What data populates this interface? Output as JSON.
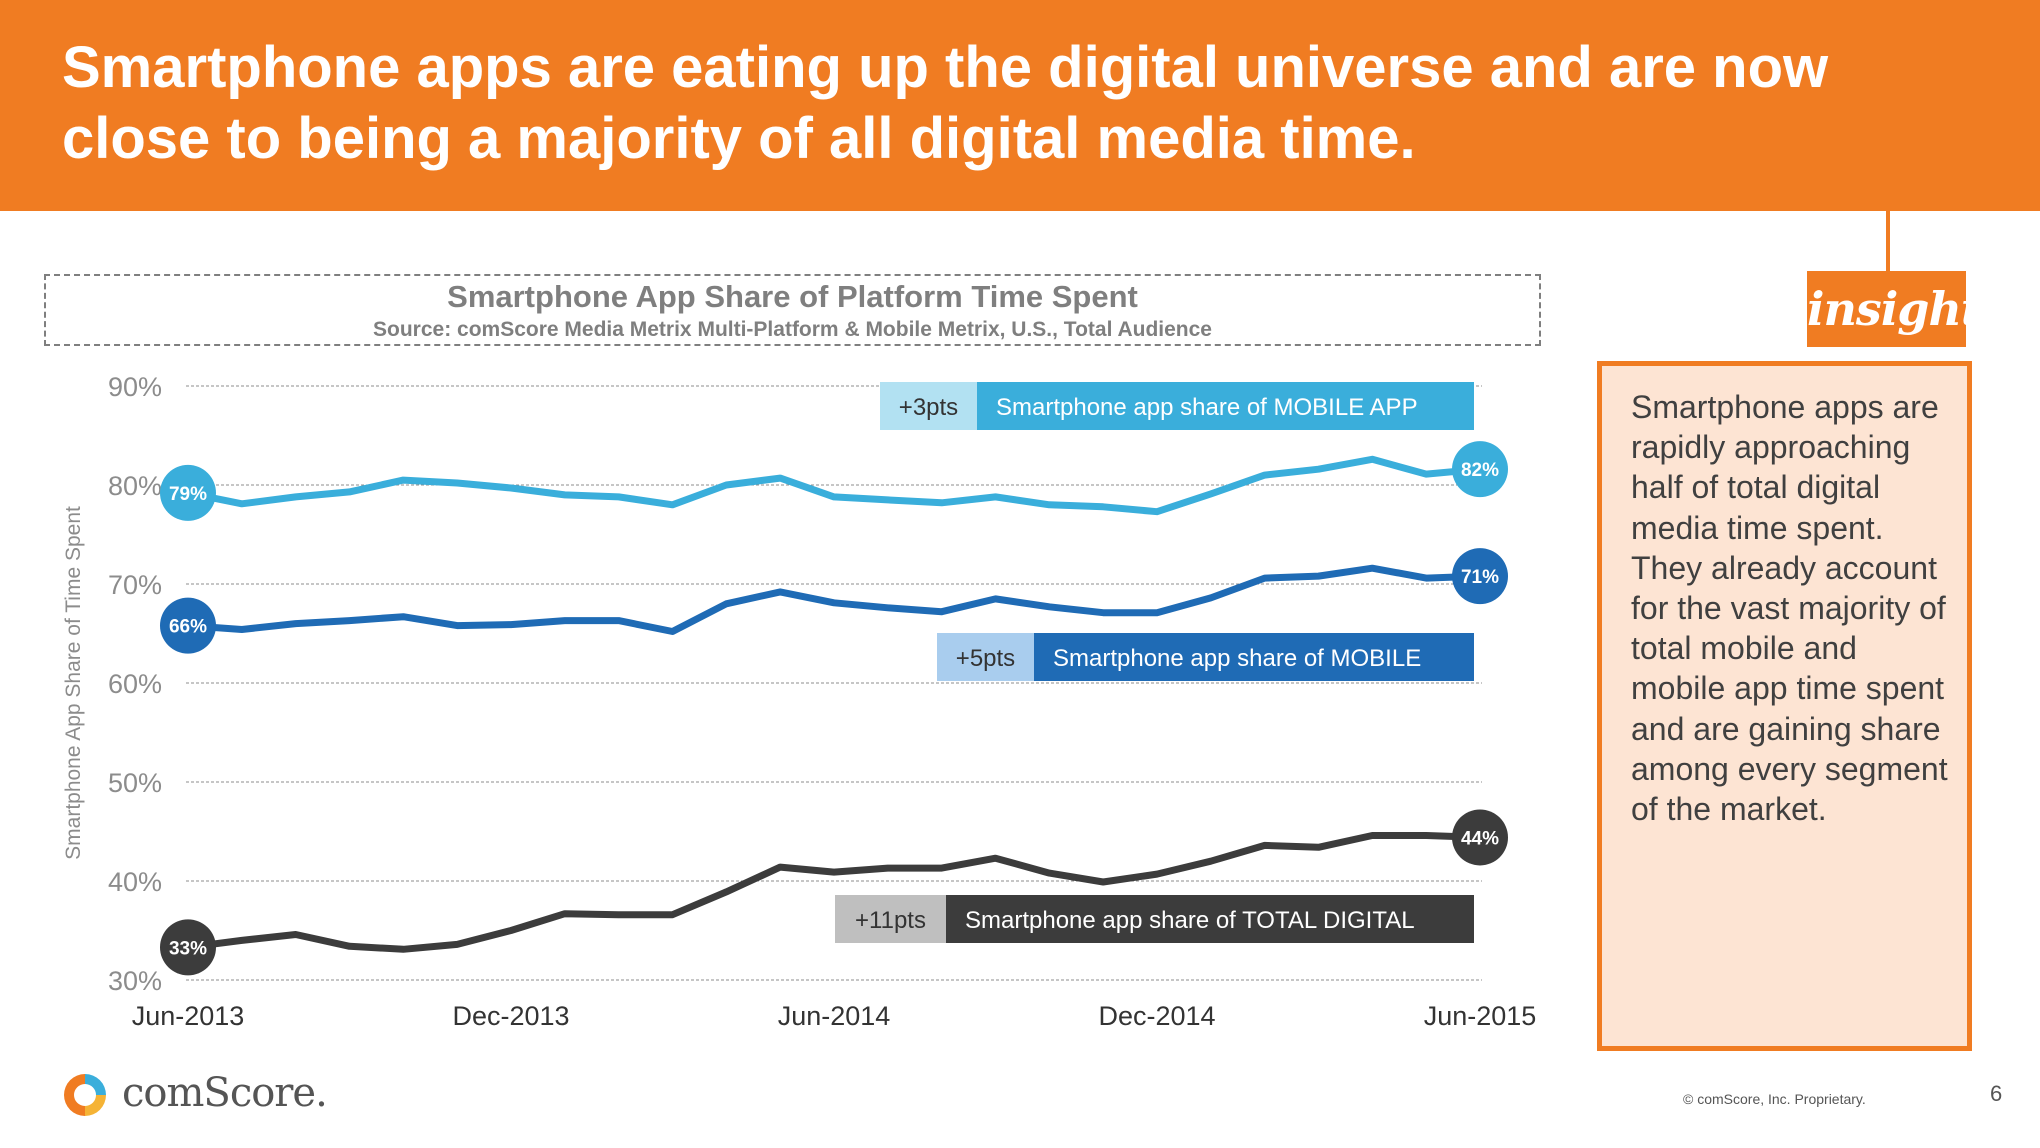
{
  "slide": {
    "headline": "Smartphone apps are eating up the digital universe and are now close to being a majority of all digital media time.",
    "insight_label": "insight",
    "insight_text": "Smartphone apps are rapidly approaching half of total digital media time spent. They already account for the vast majority of total mobile and mobile app time spent and are gaining share among every segment of the market.",
    "logo_text": "comScore.",
    "copyright": "© comScore, Inc. Proprietary.",
    "page_number": "6"
  },
  "chart_data": {
    "type": "line",
    "title": "Smartphone App Share of Platform Time Spent",
    "subtitle": "Source: comScore Media Metrix Multi-Platform & Mobile Metrix, U.S., Total Audience",
    "ylabel": "Smartphone App Share of Time Spent",
    "ylim": [
      30,
      90
    ],
    "y_ticks": [
      "30%",
      "40%",
      "50%",
      "60%",
      "70%",
      "80%",
      "90%"
    ],
    "y_tick_values": [
      30,
      40,
      50,
      60,
      70,
      80,
      90
    ],
    "x_tick_labels": [
      "Jun-2013",
      "Dec-2013",
      "Jun-2014",
      "Dec-2014",
      "Jun-2015"
    ],
    "x_tick_index": [
      0,
      6,
      12,
      18,
      24
    ],
    "grid": true,
    "series": [
      {
        "name": "Smartphone app share of MOBILE APP",
        "delta": "+3pts",
        "color": "#3aaedb",
        "delta_color": "#b2e1f2",
        "start_label": "79%",
        "end_label": "82%",
        "values": [
          79.2,
          78.1,
          78.8,
          79.3,
          80.5,
          80.2,
          79.7,
          79.0,
          78.8,
          78.0,
          80.0,
          80.7,
          78.8,
          78.5,
          78.2,
          78.8,
          78.0,
          77.8,
          77.3,
          79.1,
          81.0,
          81.6,
          82.6,
          81.1,
          81.6
        ]
      },
      {
        "name": "Smartphone app share of MOBILE",
        "delta": "+5pts",
        "color": "#1f6bb5",
        "delta_color": "#a9cdee",
        "start_label": "66%",
        "end_label": "71%",
        "values": [
          65.8,
          65.4,
          66.0,
          66.3,
          66.7,
          65.8,
          65.9,
          66.3,
          66.3,
          65.2,
          68.0,
          69.2,
          68.1,
          67.6,
          67.2,
          68.5,
          67.7,
          67.1,
          67.1,
          68.6,
          70.6,
          70.8,
          71.6,
          70.6,
          70.8
        ]
      },
      {
        "name": "Smartphone app share of TOTAL DIGITAL",
        "delta": "+11pts",
        "color": "#3c3c3c",
        "delta_color": "#bfbfbf",
        "start_label": "33%",
        "end_label": "44%",
        "values": [
          33.3,
          34.0,
          34.6,
          33.4,
          33.1,
          33.6,
          35.0,
          36.7,
          36.6,
          36.6,
          38.9,
          41.4,
          40.9,
          41.3,
          41.3,
          42.3,
          40.8,
          39.9,
          40.7,
          42.0,
          43.6,
          43.4,
          44.6,
          44.6,
          44.4
        ]
      }
    ]
  }
}
